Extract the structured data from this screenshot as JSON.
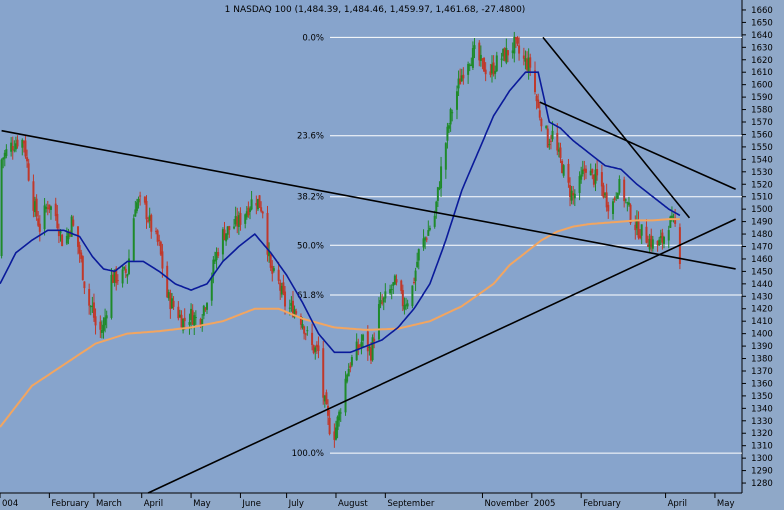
{
  "chart_data": {
    "type": "candlestick",
    "title": "1 NASDAQ 100 (1,484.39, 1,484.46, 1,459.97, 1,461.68, -27.4800)",
    "colors": {
      "background": "#8fa8c8",
      "plot_bg": "#87a4cc",
      "up": "#1f8a2a",
      "down": "#c0392b",
      "ma_fast": "#0a1a9a",
      "ma_slow": "#f2a560",
      "fib": "#ffffff",
      "trendline": "#000000"
    },
    "ylim": [
      1272,
      1668
    ],
    "y_ticks": [
      1280,
      1290,
      1300,
      1310,
      1320,
      1330,
      1340,
      1350,
      1360,
      1370,
      1380,
      1390,
      1400,
      1410,
      1420,
      1430,
      1440,
      1450,
      1460,
      1470,
      1480,
      1490,
      1500,
      1510,
      1520,
      1530,
      1540,
      1550,
      1560,
      1570,
      1580,
      1590,
      1600,
      1610,
      1620,
      1630,
      1640,
      1650,
      1660
    ],
    "x_labels": [
      "004",
      "February",
      "March",
      "April",
      "May",
      "June",
      "July",
      "August",
      "September",
      "November",
      "2005",
      "February",
      "April",
      "May"
    ],
    "x_positions_days": [
      0,
      31,
      59,
      89,
      120,
      151,
      180,
      211,
      242,
      303,
      334,
      365,
      418,
      449
    ],
    "fib_levels": [
      {
        "label": "0.0%",
        "value": 1638
      },
      {
        "label": "23.6%",
        "value": 1559
      },
      {
        "label": "38.2%",
        "value": 1510
      },
      {
        "label": "50.0%",
        "value": 1471
      },
      {
        "label": "61.8%",
        "value": 1431
      },
      {
        "label": "100.0%",
        "value": 1304
      }
    ],
    "trendlines": [
      {
        "from": [
          1,
          1563
        ],
        "to": [
          462,
          1452
        ]
      },
      {
        "from": [
          93,
          1272
        ],
        "to": [
          462,
          1492
        ]
      },
      {
        "from": [
          341,
          1638
        ],
        "to": [
          433,
          1493
        ]
      },
      {
        "from": [
          339,
          1586
        ],
        "to": [
          462,
          1516
        ]
      }
    ],
    "ohlc_anchors": [
      [
        1,
        1540
      ],
      [
        6,
        1550
      ],
      [
        11,
        1555
      ],
      [
        15,
        1555
      ],
      [
        20,
        1510
      ],
      [
        25,
        1485
      ],
      [
        30,
        1505
      ],
      [
        35,
        1495
      ],
      [
        40,
        1470
      ],
      [
        45,
        1490
      ],
      [
        50,
        1465
      ],
      [
        55,
        1425
      ],
      [
        58,
        1420
      ],
      [
        61,
        1400
      ],
      [
        65,
        1405
      ],
      [
        70,
        1445
      ],
      [
        75,
        1445
      ],
      [
        80,
        1450
      ],
      [
        85,
        1505
      ],
      [
        90,
        1505
      ],
      [
        95,
        1485
      ],
      [
        100,
        1470
      ],
      [
        105,
        1430
      ],
      [
        110,
        1420
      ],
      [
        115,
        1410
      ],
      [
        120,
        1415
      ],
      [
        125,
        1410
      ],
      [
        130,
        1430
      ],
      [
        135,
        1460
      ],
      [
        140,
        1480
      ],
      [
        145,
        1485
      ],
      [
        150,
        1490
      ],
      [
        155,
        1500
      ],
      [
        160,
        1510
      ],
      [
        165,
        1500
      ],
      [
        170,
        1450
      ],
      [
        175,
        1440
      ],
      [
        180,
        1420
      ],
      [
        185,
        1420
      ],
      [
        190,
        1410
      ],
      [
        195,
        1390
      ],
      [
        200,
        1385
      ],
      [
        203,
        1350
      ],
      [
        206,
        1330
      ],
      [
        209,
        1315
      ],
      [
        213,
        1335
      ],
      [
        218,
        1370
      ],
      [
        223,
        1385
      ],
      [
        228,
        1395
      ],
      [
        233,
        1385
      ],
      [
        238,
        1420
      ],
      [
        243,
        1430
      ],
      [
        248,
        1440
      ],
      [
        253,
        1425
      ],
      [
        258,
        1430
      ],
      [
        263,
        1465
      ],
      [
        268,
        1480
      ],
      [
        273,
        1495
      ],
      [
        278,
        1540
      ],
      [
        283,
        1575
      ],
      [
        288,
        1600
      ],
      [
        293,
        1620
      ],
      [
        298,
        1625
      ],
      [
        303,
        1615
      ],
      [
        308,
        1610
      ],
      [
        313,
        1620
      ],
      [
        318,
        1625
      ],
      [
        323,
        1632
      ],
      [
        328,
        1620
      ],
      [
        333,
        1615
      ],
      [
        338,
        1580
      ],
      [
        341,
        1570
      ],
      [
        344,
        1555
      ],
      [
        347,
        1560
      ],
      [
        350,
        1545
      ],
      [
        353,
        1535
      ],
      [
        356,
        1520
      ],
      [
        360,
        1510
      ],
      [
        364,
        1520
      ],
      [
        368,
        1535
      ],
      [
        372,
        1525
      ],
      [
        376,
        1525
      ],
      [
        380,
        1510
      ],
      [
        384,
        1500
      ],
      [
        388,
        1520
      ],
      [
        392,
        1510
      ],
      [
        396,
        1495
      ],
      [
        400,
        1485
      ],
      [
        404,
        1480
      ],
      [
        408,
        1475
      ],
      [
        412,
        1470
      ],
      [
        416,
        1475
      ],
      [
        420,
        1490
      ],
      [
        424,
        1486
      ],
      [
        427,
        1462
      ]
    ],
    "ma_fast_anchors": [
      [
        0,
        1440
      ],
      [
        10,
        1465
      ],
      [
        20,
        1475
      ],
      [
        30,
        1483
      ],
      [
        40,
        1483
      ],
      [
        50,
        1478
      ],
      [
        58,
        1462
      ],
      [
        65,
        1452
      ],
      [
        72,
        1450
      ],
      [
        80,
        1458
      ],
      [
        90,
        1458
      ],
      [
        100,
        1450
      ],
      [
        110,
        1440
      ],
      [
        120,
        1435
      ],
      [
        130,
        1440
      ],
      [
        140,
        1458
      ],
      [
        150,
        1470
      ],
      [
        160,
        1480
      ],
      [
        170,
        1465
      ],
      [
        180,
        1447
      ],
      [
        190,
        1425
      ],
      [
        200,
        1400
      ],
      [
        210,
        1385
      ],
      [
        220,
        1385
      ],
      [
        230,
        1390
      ],
      [
        240,
        1395
      ],
      [
        250,
        1405
      ],
      [
        260,
        1420
      ],
      [
        270,
        1440
      ],
      [
        280,
        1475
      ],
      [
        290,
        1515
      ],
      [
        300,
        1545
      ],
      [
        310,
        1575
      ],
      [
        320,
        1595
      ],
      [
        330,
        1610
      ],
      [
        338,
        1610
      ],
      [
        345,
        1570
      ],
      [
        352,
        1565
      ],
      [
        360,
        1555
      ],
      [
        370,
        1545
      ],
      [
        380,
        1535
      ],
      [
        390,
        1532
      ],
      [
        400,
        1520
      ],
      [
        410,
        1510
      ],
      [
        420,
        1500
      ],
      [
        427,
        1495
      ]
    ],
    "ma_slow_anchors": [
      [
        0,
        1325
      ],
      [
        20,
        1358
      ],
      [
        40,
        1375
      ],
      [
        60,
        1392
      ],
      [
        80,
        1400
      ],
      [
        100,
        1402
      ],
      [
        120,
        1405
      ],
      [
        140,
        1410
      ],
      [
        160,
        1420
      ],
      [
        175,
        1420
      ],
      [
        190,
        1412
      ],
      [
        210,
        1405
      ],
      [
        230,
        1403
      ],
      [
        250,
        1404
      ],
      [
        270,
        1410
      ],
      [
        290,
        1422
      ],
      [
        310,
        1440
      ],
      [
        320,
        1455
      ],
      [
        330,
        1465
      ],
      [
        340,
        1475
      ],
      [
        350,
        1482
      ],
      [
        360,
        1486
      ],
      [
        370,
        1488
      ],
      [
        380,
        1489
      ],
      [
        390,
        1490
      ],
      [
        400,
        1491
      ],
      [
        410,
        1491
      ],
      [
        420,
        1492
      ],
      [
        427,
        1492
      ]
    ]
  }
}
